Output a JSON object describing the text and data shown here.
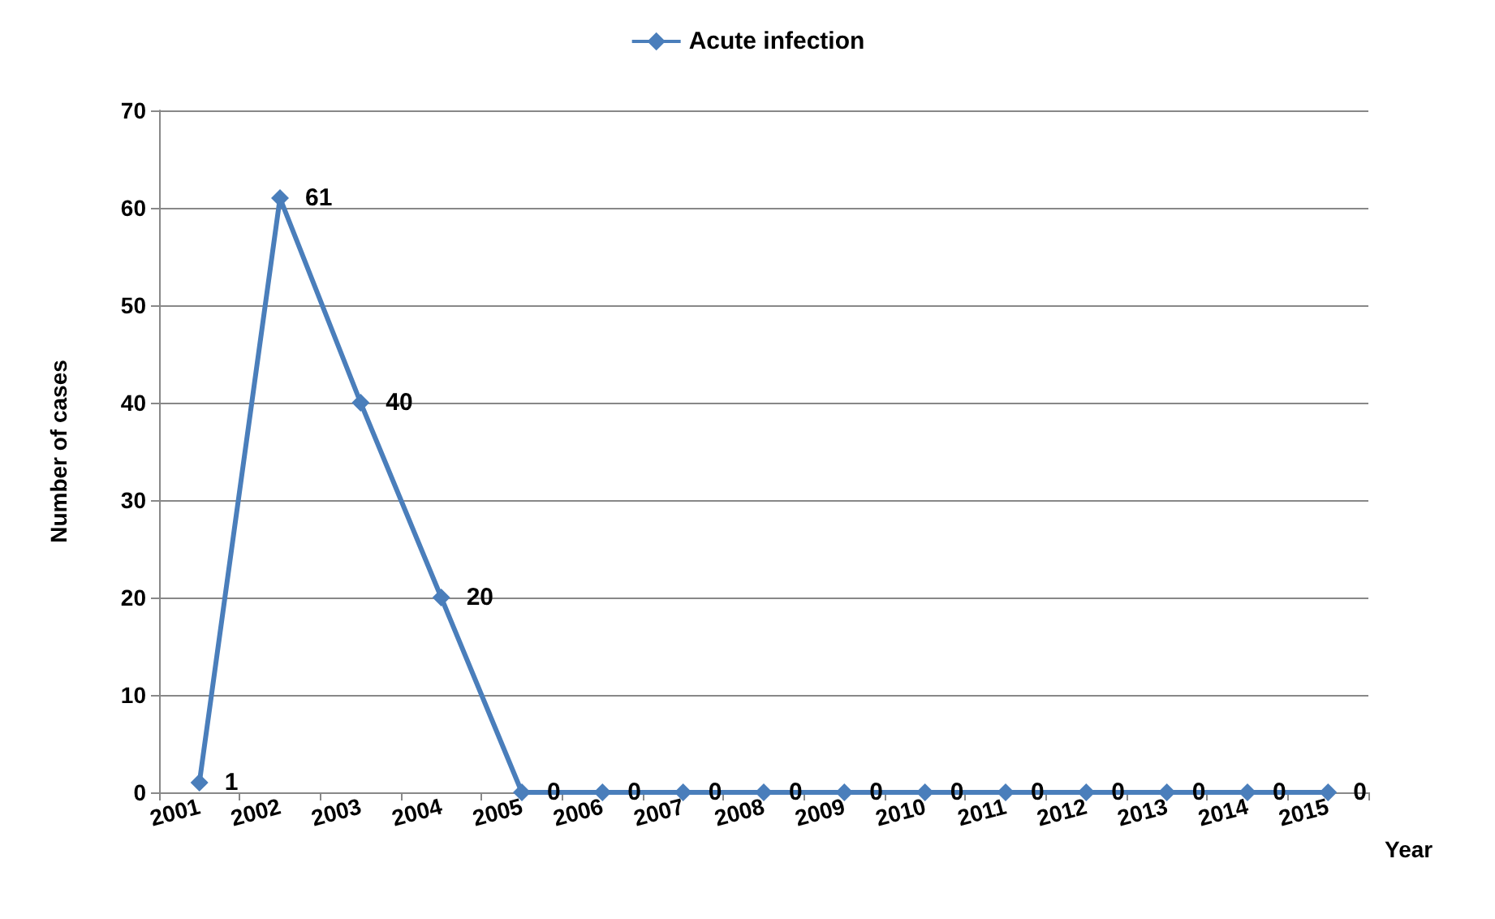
{
  "chart_data": {
    "type": "line",
    "xlabel": "Year",
    "ylabel": "Number of cases",
    "categories": [
      "2001",
      "2002",
      "2003",
      "2004",
      "2005",
      "2006",
      "2007",
      "2008",
      "2009",
      "2010",
      "2011",
      "2012",
      "2013",
      "2014",
      "2015"
    ],
    "series": [
      {
        "name": "Acute infection",
        "color": "#4a7ebb",
        "values": [
          1,
          61,
          40,
          20,
          0,
          0,
          0,
          0,
          0,
          0,
          0,
          0,
          0,
          0,
          0
        ]
      }
    ],
    "ylim": [
      0,
      70
    ],
    "yticks": [
      0,
      10,
      20,
      30,
      40,
      50,
      60,
      70
    ],
    "grid": "y",
    "legend": "top",
    "marker": "diamond",
    "line_style": "solid",
    "data_labels": true
  }
}
